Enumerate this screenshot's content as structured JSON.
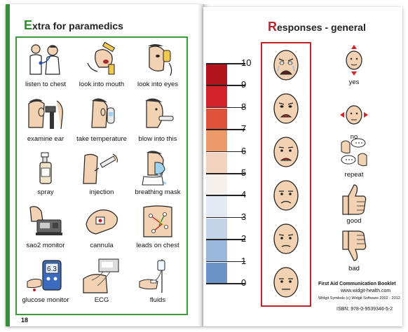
{
  "left_page": {
    "title_first": "E",
    "title_rest": "xtra for paramedics",
    "page_number": "18",
    "items": [
      {
        "label": "listen to chest",
        "icon": "stethoscope-icon"
      },
      {
        "label": "look into mouth",
        "icon": "mouth-exam-icon"
      },
      {
        "label": "look into eyes",
        "icon": "eye-exam-icon"
      },
      {
        "label": "examine ear",
        "icon": "ear-exam-icon"
      },
      {
        "label": "take temperature",
        "icon": "thermometer-icon"
      },
      {
        "label": "blow into this",
        "icon": "blow-tube-icon"
      },
      {
        "label": "spray",
        "icon": "spray-bottle-icon"
      },
      {
        "label": "injection",
        "icon": "syringe-icon"
      },
      {
        "label": "breathing mask",
        "icon": "breathing-mask-icon"
      },
      {
        "label": "sao2 monitor",
        "icon": "pulse-oximeter-icon"
      },
      {
        "label": "cannula",
        "icon": "cannula-icon"
      },
      {
        "label": "leads on chest",
        "icon": "chest-leads-icon"
      },
      {
        "label": "glucose monitor",
        "icon": "glucose-meter-icon"
      },
      {
        "label": "ECG",
        "icon": "ecg-machine-icon"
      },
      {
        "label": "fluids",
        "icon": "iv-drip-icon"
      }
    ],
    "glucose_display": "6.3"
  },
  "right_page": {
    "title_first": "R",
    "title_rest": "esponses - general",
    "pain_scale": {
      "values": [
        "10",
        "9",
        "8",
        "7",
        "6",
        "5",
        "4",
        "3",
        "2",
        "1",
        "0"
      ],
      "colors": [
        "#b3141c",
        "#d2232a",
        "#e0523a",
        "#ec9a6a",
        "#f1d3c0",
        "#f6f0ec",
        "#e3eaf3",
        "#c4d4e8",
        "#9ab7dc",
        "#6d94c7",
        "#3f6aa6"
      ]
    },
    "face_icons": [
      "face-crying-icon",
      "face-very-sad-icon",
      "face-sad-icon",
      "face-unhappy-icon",
      "face-slightly-sad-icon",
      "face-neutral-icon"
    ],
    "responses": [
      {
        "label": "yes",
        "icon": "nod-yes-icon"
      },
      {
        "label": "no",
        "icon": "shake-no-icon"
      },
      {
        "label": "repeat",
        "icon": "repeat-talk-icon"
      },
      {
        "label": "good",
        "icon": "thumbs-up-icon"
      },
      {
        "label": "bad",
        "icon": "thumbs-down-icon"
      }
    ],
    "footer": {
      "booklet": "First Aid Communication Booklet",
      "website": "www.widgit-health.com",
      "copyright": "Widgit Symbols (c) Widgit Software 2002 - 2012",
      "isbn": "ISBN: 978-0-9539346-5-2"
    }
  }
}
